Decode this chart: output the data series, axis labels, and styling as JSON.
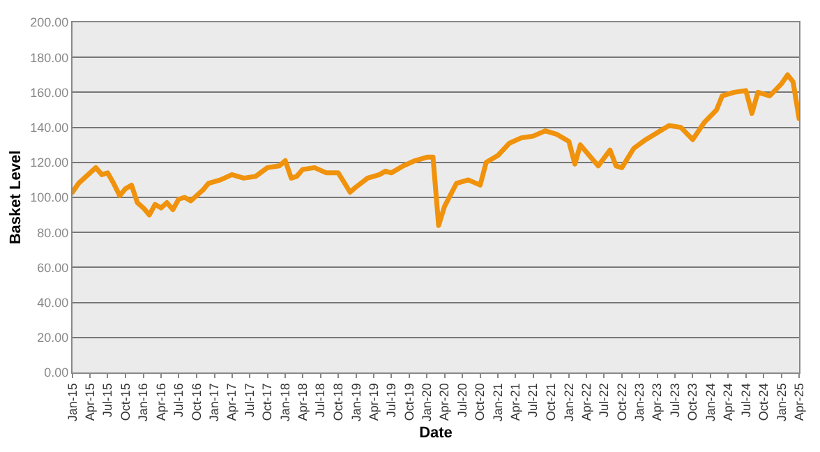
{
  "chart_data": {
    "type": "line",
    "xlabel": "Date",
    "ylabel": "Basket Level",
    "x": [
      "2015-01",
      "2015-02",
      "2015-04",
      "2015-05",
      "2015-06",
      "2015-07",
      "2015-08",
      "2015-09",
      "2015-10",
      "2015-11",
      "2015-12",
      "2016-01",
      "2016-02",
      "2016-03",
      "2016-04",
      "2016-05",
      "2016-06",
      "2016-07",
      "2016-08",
      "2016-09",
      "2016-10",
      "2016-11",
      "2016-12",
      "2017-02",
      "2017-04",
      "2017-06",
      "2017-08",
      "2017-10",
      "2017-12",
      "2018-01",
      "2018-02",
      "2018-03",
      "2018-04",
      "2018-06",
      "2018-08",
      "2018-10",
      "2018-12",
      "2019-01",
      "2019-03",
      "2019-05",
      "2019-06",
      "2019-07",
      "2019-09",
      "2019-11",
      "2020-01",
      "2020-02",
      "2020-03",
      "2020-04",
      "2020-06",
      "2020-08",
      "2020-10",
      "2020-11",
      "2021-01",
      "2021-03",
      "2021-05",
      "2021-07",
      "2021-09",
      "2021-11",
      "2022-01",
      "2022-02",
      "2022-03",
      "2022-05",
      "2022-06",
      "2022-08",
      "2022-09",
      "2022-10",
      "2022-12",
      "2023-02",
      "2023-04",
      "2023-06",
      "2023-08",
      "2023-10",
      "2023-12",
      "2024-02",
      "2024-03",
      "2024-05",
      "2024-07",
      "2024-08",
      "2024-09",
      "2024-11",
      "2025-01",
      "2025-02",
      "2025-03",
      "2025-04"
    ],
    "series": [
      {
        "color": "#f0920c",
        "values": [
          103,
          108,
          114,
          117,
          113,
          114,
          108,
          101,
          105,
          107,
          97,
          94,
          90,
          96,
          94,
          97,
          93,
          99,
          100,
          98,
          101,
          104,
          108,
          110,
          113,
          111,
          112,
          117,
          118,
          121,
          111,
          112,
          116,
          117,
          114,
          114,
          103,
          106,
          111,
          113,
          115,
          114,
          118,
          121,
          123,
          123,
          84,
          95,
          108,
          110,
          107,
          120,
          124,
          131,
          134,
          135,
          138,
          136,
          132,
          119,
          130,
          122,
          118,
          127,
          118,
          117,
          128,
          133,
          137,
          141,
          140,
          133,
          143,
          150,
          158,
          160,
          161,
          148,
          160,
          158,
          165,
          170,
          166,
          145
        ]
      }
    ],
    "xlim": [
      "2015-01",
      "2025-04"
    ],
    "xticks": [
      {
        "value": "2015-01",
        "label": "Jan-15"
      },
      {
        "value": "2015-04",
        "label": "Apr-15"
      },
      {
        "value": "2015-07",
        "label": "Jul-15"
      },
      {
        "value": "2015-10",
        "label": "Oct-15"
      },
      {
        "value": "2016-01",
        "label": "Jan-16"
      },
      {
        "value": "2016-04",
        "label": "Apr-16"
      },
      {
        "value": "2016-07",
        "label": "Jul-16"
      },
      {
        "value": "2016-10",
        "label": "Oct-16"
      },
      {
        "value": "2017-01",
        "label": "Jan-17"
      },
      {
        "value": "2017-04",
        "label": "Apr-17"
      },
      {
        "value": "2017-07",
        "label": "Jul-17"
      },
      {
        "value": "2017-10",
        "label": "Oct-17"
      },
      {
        "value": "2018-01",
        "label": "Jan-18"
      },
      {
        "value": "2018-04",
        "label": "Apr-18"
      },
      {
        "value": "2018-07",
        "label": "Jul-18"
      },
      {
        "value": "2018-10",
        "label": "Oct-18"
      },
      {
        "value": "2019-01",
        "label": "Jan-19"
      },
      {
        "value": "2019-04",
        "label": "Apr-19"
      },
      {
        "value": "2019-07",
        "label": "Jul-19"
      },
      {
        "value": "2019-10",
        "label": "Oct-19"
      },
      {
        "value": "2020-01",
        "label": "Jan-20"
      },
      {
        "value": "2020-04",
        "label": "Apr-20"
      },
      {
        "value": "2020-07",
        "label": "Jul-20"
      },
      {
        "value": "2020-10",
        "label": "Oct-20"
      },
      {
        "value": "2021-01",
        "label": "Jan-21"
      },
      {
        "value": "2021-04",
        "label": "Apr-21"
      },
      {
        "value": "2021-07",
        "label": "Jul-21"
      },
      {
        "value": "2021-10",
        "label": "Oct-21"
      },
      {
        "value": "2022-01",
        "label": "Jan-22"
      },
      {
        "value": "2022-04",
        "label": "Apr-22"
      },
      {
        "value": "2022-07",
        "label": "Jul-22"
      },
      {
        "value": "2022-10",
        "label": "Oct-22"
      },
      {
        "value": "2023-01",
        "label": "Jan-23"
      },
      {
        "value": "2023-04",
        "label": "Apr-23"
      },
      {
        "value": "2023-07",
        "label": "Jul-23"
      },
      {
        "value": "2023-10",
        "label": "Oct-23"
      },
      {
        "value": "2024-01",
        "label": "Jan-24"
      },
      {
        "value": "2024-04",
        "label": "Apr-24"
      },
      {
        "value": "2024-07",
        "label": "Jul-24"
      },
      {
        "value": "2024-10",
        "label": "Oct-24"
      },
      {
        "value": "2025-01",
        "label": "Jan-25"
      },
      {
        "value": "2025-04",
        "label": "Apr-25"
      }
    ],
    "ylim": [
      0,
      200
    ],
    "yticks": [
      {
        "value": 0,
        "label": "0.00"
      },
      {
        "value": 20,
        "label": "20.00"
      },
      {
        "value": 40,
        "label": "40.00"
      },
      {
        "value": 60,
        "label": "60.00"
      },
      {
        "value": 80,
        "label": "80.00"
      },
      {
        "value": 100,
        "label": "100.00"
      },
      {
        "value": 120,
        "label": "120.00"
      },
      {
        "value": 140,
        "label": "140.00"
      },
      {
        "value": 160,
        "label": "160.00"
      },
      {
        "value": 180,
        "label": "180.00"
      },
      {
        "value": 200,
        "label": "200.00"
      }
    ],
    "grid": "y",
    "marker": "none",
    "line_style": "solid"
  }
}
